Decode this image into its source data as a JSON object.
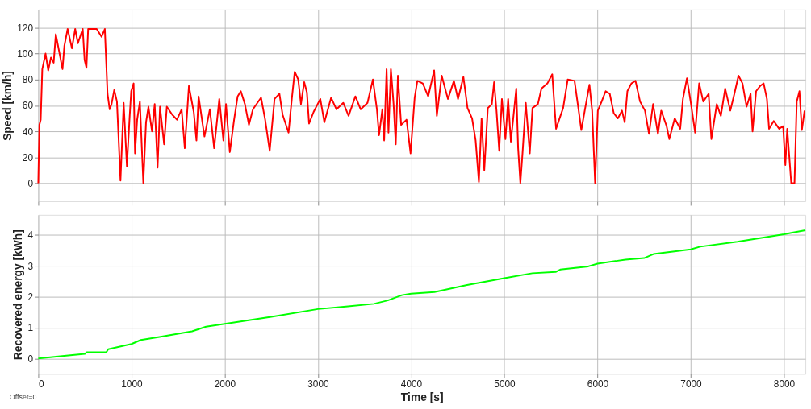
{
  "chart_data": [
    {
      "type": "line",
      "ylabel": "Speed [km/h]",
      "xlim": [
        0,
        8230
      ],
      "ylim": [
        -14,
        134
      ],
      "xticks": [
        0,
        1000,
        2000,
        3000,
        4000,
        5000,
        6000,
        7000,
        8000
      ],
      "yticks": [
        0,
        20,
        40,
        60,
        80,
        100,
        120
      ],
      "grid": true,
      "tick_labels": "y",
      "series": [
        {
          "color": "#ff0000",
          "x": [
            0,
            12,
            26,
            43,
            78,
            107,
            136,
            165,
            188,
            223,
            260,
            280,
            315,
            361,
            396,
            425,
            477,
            497,
            517,
            535,
            627,
            679,
            714,
            743,
            766,
            786,
            815,
            844,
            882,
            916,
            951,
            980,
            997,
            1023,
            1038,
            1061,
            1090,
            1127,
            1156,
            1182,
            1220,
            1249,
            1280,
            1306,
            1350,
            1379,
            1436,
            1488,
            1538,
            1572,
            1616,
            1668,
            1697,
            1720,
            1783,
            1841,
            1887,
            1942,
            1986,
            2014,
            2055,
            2101,
            2139,
            2173,
            2217,
            2260,
            2303,
            2390,
            2434,
            2483,
            2535,
            2587,
            2621,
            2685,
            2723,
            2751,
            2789,
            2818,
            2853,
            2882,
            2905,
            2954,
            3026,
            3069,
            3142,
            3199,
            3272,
            3329,
            3402,
            3459,
            3532,
            3590,
            3633,
            3656,
            3691,
            3711,
            3737,
            3757,
            3783,
            3812,
            3835,
            3858,
            3893,
            3951,
            3994,
            4038,
            4067,
            4125,
            4183,
            4247,
            4276,
            4328,
            4395,
            4459,
            4503,
            4561,
            4605,
            4654,
            4692,
            4727,
            4756,
            4785,
            4823,
            4866,
            4890,
            4916,
            4945,
            4974,
            5012,
            5041,
            5070,
            5128,
            5148,
            5172,
            5195,
            5230,
            5273,
            5302,
            5360,
            5398,
            5462,
            5514,
            5555,
            5602,
            5631,
            5680,
            5753,
            5788,
            5826,
            5875,
            5913,
            5942,
            5974,
            6003,
            6044,
            6087,
            6131,
            6174,
            6218,
            6262,
            6291,
            6320,
            6363,
            6407,
            6456,
            6509,
            6552,
            6596,
            6648,
            6683,
            6741,
            6770,
            6828,
            6887,
            6916,
            6959,
            7003,
            7047,
            7090,
            7134,
            7192,
            7221,
            7279,
            7323,
            7369,
            7424,
            7468,
            7512,
            7555,
            7599,
            7642,
            7663,
            7701,
            7744,
            7782,
            7817,
            7840,
            7890,
            7948,
            7991,
            8015,
            8035,
            8078,
            8113,
            8137,
            8166,
            8192,
            8221
          ],
          "values": [
            0,
            45,
            49,
            88,
            100,
            87,
            97,
            93,
            115,
            102,
            88,
            106,
            119,
            104,
            119,
            108,
            119,
            95,
            89,
            119,
            119,
            113,
            119,
            69,
            57,
            61,
            72,
            63,
            2,
            62,
            13,
            51,
            71,
            77,
            23,
            49,
            63,
            0,
            47,
            59,
            40,
            61,
            12,
            59,
            30,
            59,
            53,
            49,
            57,
            27,
            75,
            55,
            33,
            67,
            36,
            57,
            27,
            65,
            33,
            61,
            24,
            49,
            67,
            71,
            61,
            45,
            57,
            66,
            49,
            25,
            65,
            69,
            53,
            39,
            67,
            86,
            80,
            61,
            78,
            70,
            46,
            55,
            65,
            47,
            66,
            57,
            62,
            52,
            67,
            57,
            62,
            80,
            57,
            37,
            57,
            33,
            88,
            39,
            88,
            61,
            30,
            83,
            45,
            49,
            23,
            66,
            79,
            77,
            67,
            87,
            52,
            83,
            65,
            79,
            65,
            82,
            58,
            50,
            33,
            1,
            50,
            10,
            58,
            61,
            78,
            56,
            25,
            65,
            34,
            65,
            32,
            73,
            27,
            0,
            23,
            62,
            23,
            58,
            61,
            73,
            77,
            84,
            42,
            52,
            58,
            80,
            79,
            61,
            41,
            61,
            76,
            56,
            0,
            56,
            63,
            71,
            69,
            54,
            50,
            56,
            47,
            71,
            77,
            79,
            63,
            56,
            38,
            61,
            38,
            56,
            44,
            34,
            50,
            42,
            65,
            81,
            61,
            39,
            77,
            63,
            69,
            34,
            61,
            52,
            73,
            56,
            69,
            83,
            77,
            59,
            69,
            40,
            71,
            75,
            77,
            65,
            42,
            48,
            42,
            44,
            14,
            42,
            0,
            0,
            63,
            71,
            41,
            56
          ]
        }
      ]
    },
    {
      "type": "line",
      "xlabel": "Time [s]",
      "ylabel": "Recovered energy [kWh]",
      "xlim": [
        0,
        8230
      ],
      "ylim": [
        -0.5,
        4.65
      ],
      "xticks": [
        0,
        1000,
        2000,
        3000,
        4000,
        5000,
        6000,
        7000,
        8000
      ],
      "yticks": [
        0,
        1,
        2,
        3,
        4
      ],
      "grid": true,
      "annotations": [
        "Offset=0"
      ],
      "series": [
        {
          "color": "#00ff00",
          "x": [
            0,
            300,
            500,
            520,
            730,
            750,
            1000,
            1100,
            1300,
            1650,
            1800,
            2000,
            2500,
            3000,
            3300,
            3600,
            3750,
            3900,
            4000,
            4250,
            4600,
            5000,
            5300,
            5550,
            5600,
            5900,
            6000,
            6300,
            6500,
            6600,
            7000,
            7100,
            7500,
            8000,
            8100,
            8230
          ],
          "values": [
            0,
            0.09,
            0.15,
            0.2,
            0.2,
            0.3,
            0.47,
            0.6,
            0.7,
            0.88,
            1.03,
            1.12,
            1.35,
            1.6,
            1.68,
            1.77,
            1.88,
            2.05,
            2.1,
            2.15,
            2.38,
            2.6,
            2.76,
            2.8,
            2.88,
            2.98,
            3.07,
            3.2,
            3.25,
            3.38,
            3.53,
            3.62,
            3.78,
            4.02,
            4.08,
            4.15
          ]
        }
      ]
    }
  ]
}
